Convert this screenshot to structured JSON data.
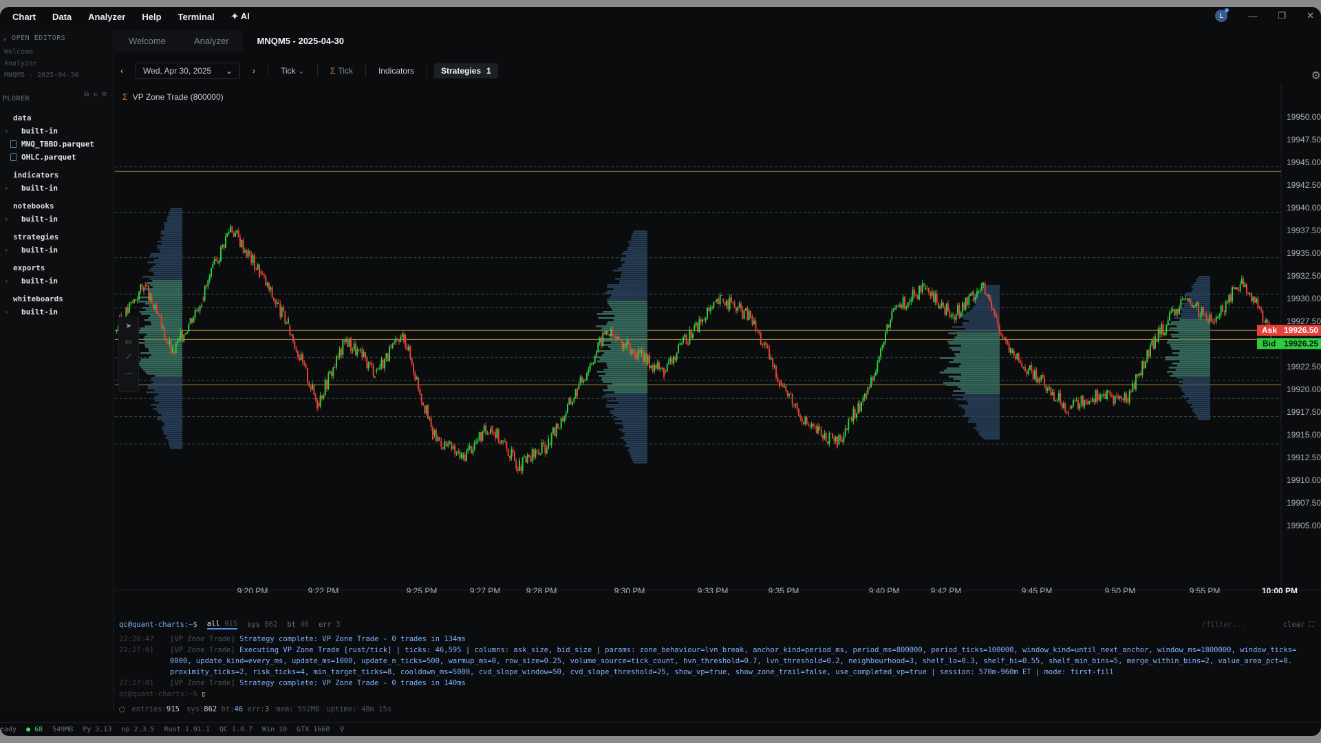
{
  "menu": {
    "items": [
      "Chart",
      "Data",
      "Analyzer",
      "Help",
      "Terminal",
      "AI"
    ]
  },
  "window": {
    "avatar": "L"
  },
  "sidebar": {
    "open_editors_title": "OPEN EDITORS",
    "open_editors": [
      "Welcome",
      "Analyzer",
      "MNQM5 - 2025-04-30"
    ],
    "explorer_title": "PLORER",
    "groups": [
      {
        "name": "data",
        "items": [
          {
            "label": "built-in",
            "type": "folder"
          },
          {
            "label": "MNQ_TBBO.parquet",
            "type": "file"
          },
          {
            "label": "OHLC.parquet",
            "type": "file"
          }
        ]
      },
      {
        "name": "indicators",
        "items": [
          {
            "label": "built-in",
            "type": "folder"
          }
        ]
      },
      {
        "name": "notebooks",
        "items": [
          {
            "label": "built-in",
            "type": "folder"
          }
        ]
      },
      {
        "name": "strategies",
        "items": [
          {
            "label": "built-in",
            "type": "folder"
          }
        ]
      },
      {
        "name": "exports",
        "items": [
          {
            "label": "built-in",
            "type": "folder"
          }
        ]
      },
      {
        "name": "whiteboards",
        "items": [
          {
            "label": "built-in",
            "type": "folder"
          }
        ]
      }
    ]
  },
  "tabs": [
    {
      "label": "Welcome"
    },
    {
      "label": "Analyzer"
    },
    {
      "label": "MNQM5 - 2025-04-30",
      "active": true
    }
  ],
  "toolbar": {
    "date": "Wed, Apr 30, 2025",
    "tick": "Tick",
    "sigma_tick": "Tick",
    "indicators": "Indicators",
    "strategies": "Strategies",
    "strategies_count": "1"
  },
  "chart": {
    "strategy_label": "VP Zone Trade (800000)",
    "ask_label": "Ask",
    "ask_value": "19926.50",
    "bid_label": "Bid",
    "bid_value": "19926.25",
    "colors": {
      "up": "#2ecc40",
      "down": "#e8403a",
      "profile": "#2a4560",
      "profile_zone": "#3d7a6a",
      "hline": "#c9a24a",
      "ask": "#e8403a",
      "bid": "#2ecc40"
    }
  },
  "chart_data": {
    "type": "candlestick",
    "title": "",
    "y_ticks": [
      "19950.00",
      "19947.50",
      "19945.00",
      "19942.50",
      "19940.00",
      "19937.50",
      "19935.00",
      "19932.50",
      "19930.00",
      "19927.50",
      "19925.00",
      "19922.50",
      "19920.00",
      "19917.50",
      "19915.00",
      "19912.50",
      "19910.00",
      "19907.50",
      "19905.00"
    ],
    "x_ticks": [
      "9:20 PM",
      "9:22 PM",
      "9:25 PM",
      "9:27 PM",
      "9:28 PM",
      "9:30 PM",
      "9:33 PM",
      "9:35 PM",
      "9:40 PM",
      "9:42 PM",
      "9:45 PM",
      "9:50 PM",
      "9:55 PM",
      "10:00 PM"
    ],
    "ylim": [
      19905,
      19950
    ],
    "price_path": [
      {
        "x": "9:18 PM",
        "y": 19926.5
      },
      {
        "x": "9:19 PM",
        "y": 19931.5
      },
      {
        "x": "9:20 PM",
        "y": 19924.0
      },
      {
        "x": "9:21 PM",
        "y": 19930.0
      },
      {
        "x": "9:22 PM",
        "y": 19938.0
      },
      {
        "x": "9:22 PM",
        "y": 19933.0
      },
      {
        "x": "9:23 PM",
        "y": 19927.0
      },
      {
        "x": "9:24 PM",
        "y": 19918.5
      },
      {
        "x": "9:25 PM",
        "y": 19925.5
      },
      {
        "x": "9:26 PM",
        "y": 19922.0
      },
      {
        "x": "9:27 PM",
        "y": 19926.0
      },
      {
        "x": "9:28 PM",
        "y": 19915.0
      },
      {
        "x": "9:29 PM",
        "y": 19912.5
      },
      {
        "x": "9:30 PM",
        "y": 19916.0
      },
      {
        "x": "9:31 PM",
        "y": 19911.5
      },
      {
        "x": "9:32 PM",
        "y": 19914.0
      },
      {
        "x": "9:33 PM",
        "y": 19920.0
      },
      {
        "x": "9:34 PM",
        "y": 19926.5
      },
      {
        "x": "9:35 PM",
        "y": 19924.0
      },
      {
        "x": "9:36 PM",
        "y": 19922.0
      },
      {
        "x": "9:38 PM",
        "y": 19926.5
      },
      {
        "x": "9:39 PM",
        "y": 19930.0
      },
      {
        "x": "9:40 PM",
        "y": 19928.0
      },
      {
        "x": "9:41 PM",
        "y": 19921.0
      },
      {
        "x": "9:42 PM",
        "y": 19916.0
      },
      {
        "x": "9:43 PM",
        "y": 19914.0
      },
      {
        "x": "9:44 PM",
        "y": 19919.5
      },
      {
        "x": "9:45 PM",
        "y": 19929.0
      },
      {
        "x": "9:46 PM",
        "y": 19931.0
      },
      {
        "x": "9:47 PM",
        "y": 19928.0
      },
      {
        "x": "9:48 PM",
        "y": 19931.5
      },
      {
        "x": "9:49 PM",
        "y": 19924.0
      },
      {
        "x": "9:50 PM",
        "y": 19921.0
      },
      {
        "x": "9:51 PM",
        "y": 19918.0
      },
      {
        "x": "9:53 PM",
        "y": 19919.5
      },
      {
        "x": "9:55 PM",
        "y": 19919.0
      },
      {
        "x": "9:57 PM",
        "y": 19925.5
      },
      {
        "x": "9:58 PM",
        "y": 19930.0
      },
      {
        "x": "10:00 PM",
        "y": 19927.5
      },
      {
        "x": "10:01 PM",
        "y": 19932.0
      },
      {
        "x": "10:02 PM",
        "y": 19926.5
      }
    ],
    "horizontal_levels": [
      {
        "y": 19944.5,
        "style": "dashed"
      },
      {
        "y": 19944.0,
        "style": "solid"
      },
      {
        "y": 19939.5,
        "style": "dashed"
      },
      {
        "y": 19934.5,
        "style": "dashed"
      },
      {
        "y": 19930.5,
        "style": "dashed"
      },
      {
        "y": 19929.0,
        "style": "dashed"
      },
      {
        "y": 19926.5,
        "style": "solid"
      },
      {
        "y": 19925.5,
        "style": "solid"
      },
      {
        "y": 19923.5,
        "style": "dashed"
      },
      {
        "y": 19921.0,
        "style": "dashed"
      },
      {
        "y": 19919.0,
        "style": "dashed"
      },
      {
        "y": 19920.5,
        "style": "solid"
      },
      {
        "y": 19914.0,
        "style": "dashed"
      },
      {
        "y": 19917.0,
        "style": "dashed"
      }
    ]
  },
  "terminal": {
    "prompt": "qc@quant-charts:~$",
    "tabs": [
      {
        "label": "all",
        "count": "915",
        "active": true
      },
      {
        "label": "sys",
        "count": "862"
      },
      {
        "label": "bt",
        "count": "46"
      },
      {
        "label": "err",
        "count": "3"
      }
    ],
    "filter_placeholder": "/filter...",
    "clear": "clear",
    "lines": [
      {
        "ts": "22:26:47",
        "tag": "[VP Zone Trade]",
        "msg": "Strategy complete: VP Zone Trade - 0 trades in 134ms"
      },
      {
        "ts": "22:27:01",
        "tag": "[VP Zone Trade]",
        "msg": "Executing VP Zone Trade [rust/tick] | ticks: 46,595 | columns: ask_size, bid_size | params: zone_behaviour=lvn_break, anchor_kind=period_ms, period_ms=800000, period_ticks=100000, window_kind=until_next_anchor, window_ms=1800000, window_ticks="
      },
      {
        "ts": "",
        "tag": "",
        "msg": "0000, update_kind=every_ms, update_ms=1000, update_n_ticks=500, warmup_ms=0, row_size=0.25, volume_source=tick_count, hvn_threshold=0.7, lvn_threshold=0.2, neighbourhood=3, shelf_lo=0.3, shelf_hi=0.55, shelf_min_bins=5, merge_within_bins=2, value_area_pct=0."
      },
      {
        "ts": "",
        "tag": "",
        "msg": "proximity_ticks=2, risk_ticks=4, min_target_ticks=8, cooldown_ms=5000, cvd_slope_window=50, cvd_slope_threshold=25, show_vp=true, show_zone_trail=false, use_completed_vp=true | session: 570m-960m ET | mode: first-fill"
      },
      {
        "ts": "22:27:01",
        "tag": "[VP Zone Trade]",
        "msg": "Strategy complete: VP Zone Trade - 0 trades in 140ms"
      }
    ],
    "prompt2": "qc@quant-charts:~$",
    "stats": {
      "entries_label": "entries:",
      "entries": "915",
      "sys_label": "sys:",
      "sys": "862",
      "bt_label": "bt:",
      "bt": "46",
      "err_label": "err:",
      "err": "3",
      "mem": "mem: 552MB",
      "uptime": "uptime: 48m 15s"
    }
  },
  "statusbar": {
    "ready": "eady",
    "gc": "68",
    "mem": "549MB",
    "py": "Py 3.13",
    "np": "np 2.3.5",
    "rust": "Rust 1.91.1",
    "qc": "QC 1.0.7",
    "win": "Win 10",
    "gpu": "GTX 1660"
  }
}
